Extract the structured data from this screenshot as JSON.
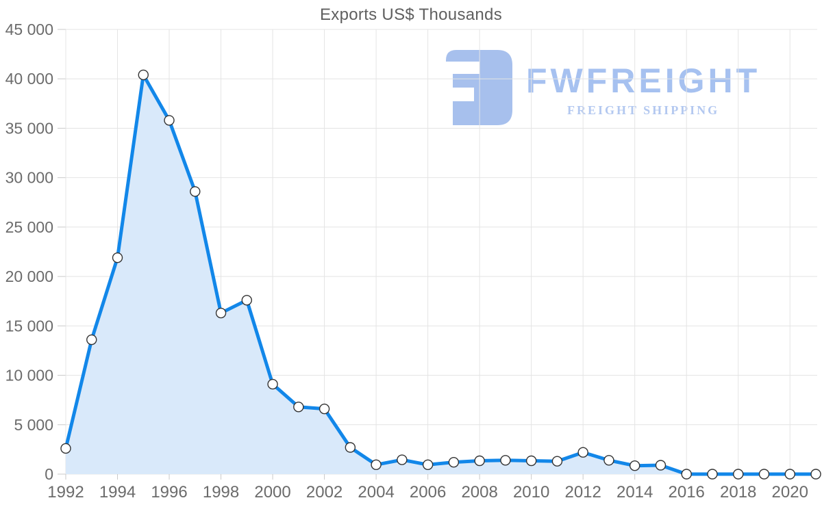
{
  "title": "Exports US$ Thousands",
  "logo": {
    "wordmark": "FWFREIGHT",
    "tagline": "FREIGHT SHIPPING",
    "icon_color": "#a7c0ed",
    "wordmark_color": "#a6c1f0",
    "tagline_color": "#b3c8f0"
  },
  "colors": {
    "line": "#1287e9",
    "area_fill": "#d9e9fa",
    "marker_fill": "#ffffff",
    "marker_stroke": "#333333",
    "grid": "#e4e4e4",
    "tick": "#c9c9c9",
    "axis_text": "#6b6b6b",
    "title_text": "#5f5f5f"
  },
  "chart_data": {
    "type": "area",
    "title": "Exports US$ Thousands",
    "xlabel": "",
    "ylabel": "Exports US$ Thousands",
    "x": [
      1992,
      1993,
      1994,
      1995,
      1996,
      1997,
      1998,
      1999,
      2000,
      2001,
      2002,
      2003,
      2004,
      2005,
      2006,
      2007,
      2008,
      2009,
      2010,
      2011,
      2012,
      2013,
      2014,
      2015,
      2016,
      2017,
      2018,
      2019,
      2020,
      2021
    ],
    "values": [
      2600,
      13600,
      21900,
      40400,
      35800,
      28600,
      16300,
      17600,
      9100,
      6800,
      6600,
      2700,
      950,
      1450,
      950,
      1200,
      1350,
      1400,
      1350,
      1300,
      2200,
      1400,
      850,
      900,
      0,
      0,
      0,
      0,
      0,
      0
    ],
    "ylim": [
      0,
      45000
    ],
    "y_tick_values": [
      0,
      5000,
      10000,
      15000,
      20000,
      25000,
      30000,
      35000,
      40000,
      45000
    ],
    "y_tick_labels": [
      "0",
      "5 000",
      "10 000",
      "15 000",
      "20 000",
      "25 000",
      "30 000",
      "35 000",
      "40 000",
      "45 000"
    ],
    "x_tick_years": [
      1992,
      1994,
      1996,
      1998,
      2000,
      2002,
      2004,
      2006,
      2008,
      2010,
      2012,
      2014,
      2016,
      2018,
      2020
    ],
    "grid": true,
    "legend": "none"
  }
}
